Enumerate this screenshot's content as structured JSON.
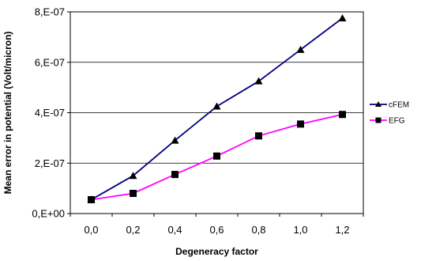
{
  "chart_data": {
    "type": "line",
    "title": "",
    "xlabel": "Degeneracy factor",
    "ylabel": "Mean error in potential (Volt/micron)",
    "categories": [
      "0,0",
      "0,2",
      "0,4",
      "0,6",
      "0,8",
      "1,0",
      "1,2"
    ],
    "x": [
      0.0,
      0.2,
      0.4,
      0.6,
      0.8,
      1.0,
      1.2
    ],
    "ylim": [
      0,
      8e-07
    ],
    "yticks": [
      0,
      2e-07,
      4e-07,
      6e-07,
      8e-07
    ],
    "ytick_labels": [
      "0,E+00",
      "2,E-07",
      "4,E-07",
      "6,E-07",
      "8,E-07"
    ],
    "grid": true,
    "legend_position": "right",
    "series": [
      {
        "name": "cFEM",
        "color": "#000080",
        "marker": "triangle",
        "values": [
          5.5e-08,
          1.5e-07,
          2.9e-07,
          4.25e-07,
          5.25e-07,
          6.5e-07,
          7.75e-07
        ]
      },
      {
        "name": "EFG",
        "color": "#ff00ff",
        "marker": "square",
        "values": [
          5.5e-08,
          8e-08,
          1.55e-07,
          2.28e-07,
          3.08e-07,
          3.55e-07,
          3.93e-07
        ]
      }
    ]
  }
}
